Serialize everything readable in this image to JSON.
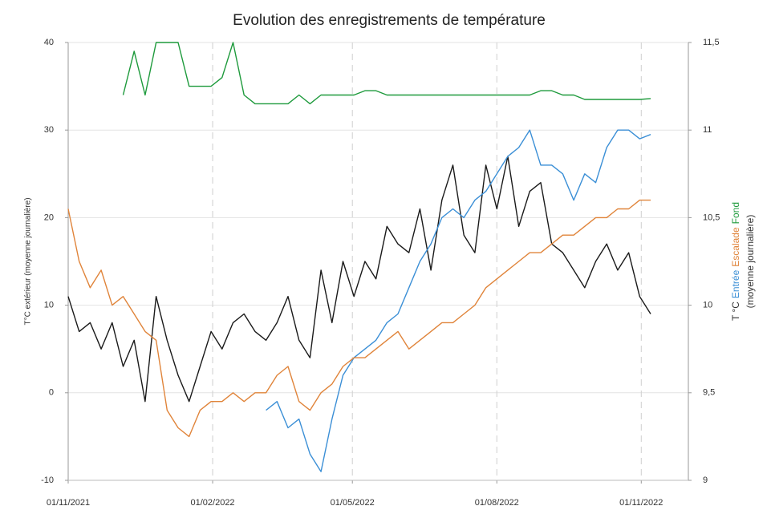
{
  "chart_data": {
    "type": "line",
    "title": "Evolution des enregistrements de température",
    "y_label": "T°C extérieur (moyenne journalière)",
    "y2_label_prefix": "T °C",
    "y2_label_suffix": "(moyenne journalière)",
    "x": [
      "2021-11-01",
      "2021-11-08",
      "2021-11-15",
      "2021-11-22",
      "2021-11-29",
      "2021-12-06",
      "2021-12-13",
      "2021-12-20",
      "2021-12-27",
      "2022-01-03",
      "2022-01-10",
      "2022-01-17",
      "2022-01-24",
      "2022-01-31",
      "2022-02-07",
      "2022-02-14",
      "2022-02-21",
      "2022-02-28",
      "2022-03-07",
      "2022-03-14",
      "2022-03-21",
      "2022-03-28",
      "2022-04-04",
      "2022-04-11",
      "2022-04-18",
      "2022-04-25",
      "2022-05-02",
      "2022-05-09",
      "2022-05-16",
      "2022-05-23",
      "2022-05-30",
      "2022-06-06",
      "2022-06-13",
      "2022-06-20",
      "2022-06-27",
      "2022-07-04",
      "2022-07-11",
      "2022-07-18",
      "2022-07-25",
      "2022-08-01",
      "2022-08-08",
      "2022-08-15",
      "2022-08-22",
      "2022-08-29",
      "2022-09-05",
      "2022-09-12",
      "2022-09-19",
      "2022-09-26",
      "2022-10-03",
      "2022-10-10",
      "2022-10-17",
      "2022-10-24",
      "2022-10-31",
      "2022-11-07"
    ],
    "series": [
      {
        "color": "#1a1a1a",
        "axis": "y",
        "values": [
          11,
          7,
          8,
          5,
          8,
          3,
          6,
          -1,
          11,
          6,
          2,
          -1,
          3,
          7,
          5,
          8,
          9,
          7,
          6,
          8,
          11,
          6,
          4,
          14,
          8,
          15,
          11,
          15,
          13,
          19,
          17,
          16,
          21,
          14,
          22,
          26,
          18,
          16,
          26,
          21,
          27,
          19,
          23,
          24,
          17,
          16,
          14,
          12,
          15,
          17,
          14,
          16,
          11,
          9
        ]
      },
      {
        "name": "Entrée",
        "color": "#3b8fd6",
        "axis": "y2",
        "values": [
          null,
          null,
          null,
          null,
          null,
          null,
          null,
          null,
          null,
          null,
          null,
          null,
          null,
          null,
          null,
          null,
          null,
          null,
          9.4,
          9.45,
          9.3,
          9.35,
          9.15,
          9.05,
          9.35,
          9.6,
          9.7,
          9.75,
          9.8,
          9.9,
          9.95,
          10.1,
          10.25,
          10.35,
          10.5,
          10.55,
          10.5,
          10.6,
          10.65,
          10.75,
          10.85,
          10.9,
          11,
          10.8,
          10.8,
          10.75,
          10.6,
          10.75,
          10.7,
          10.9,
          11,
          11,
          10.95,
          10.975
        ]
      },
      {
        "name": "Escalade",
        "color": "#e0843a",
        "axis": "y2",
        "values": [
          10.55,
          10.25,
          10.1,
          10.2,
          10,
          10.05,
          9.95,
          9.85,
          9.8,
          9.4,
          9.3,
          9.25,
          9.4,
          9.45,
          9.45,
          9.5,
          9.45,
          9.5,
          9.5,
          9.6,
          9.65,
          9.45,
          9.4,
          9.5,
          9.55,
          9.65,
          9.7,
          9.7,
          9.75,
          9.8,
          9.85,
          9.75,
          9.8,
          9.85,
          9.9,
          9.9,
          9.95,
          10,
          10.1,
          10.15,
          10.2,
          10.25,
          10.3,
          10.3,
          10.35,
          10.4,
          10.4,
          10.45,
          10.5,
          10.5,
          10.55,
          10.55,
          10.6,
          10.6
        ]
      },
      {
        "name": "Fond",
        "color": "#1e9a3c",
        "axis": "y2",
        "values": [
          null,
          null,
          null,
          null,
          null,
          11.2,
          11.45,
          11.2,
          11.5,
          11.5,
          11.5,
          11.25,
          11.25,
          11.25,
          11.3,
          11.5,
          11.2,
          11.15,
          11.15,
          11.15,
          11.15,
          11.2,
          11.15,
          11.2,
          11.2,
          11.2,
          11.2,
          11.225,
          11.225,
          11.2,
          11.2,
          11.2,
          11.2,
          11.2,
          11.2,
          11.2,
          11.2,
          11.2,
          11.2,
          11.2,
          11.2,
          11.2,
          11.2,
          11.225,
          11.225,
          11.2,
          11.2,
          11.175,
          11.175,
          11.175,
          11.175,
          11.175,
          11.175,
          11.18
        ]
      }
    ],
    "xlim": [
      "2021-11-01",
      "2022-12-01"
    ],
    "xticks": [
      {
        "value": "2021-11-01",
        "label": "01/11/2021"
      },
      {
        "value": "2022-02-01",
        "label": "01/02/2022"
      },
      {
        "value": "2022-05-01",
        "label": "01/05/2022"
      },
      {
        "value": "2022-08-01",
        "label": "01/08/2022"
      },
      {
        "value": "2022-11-01",
        "label": "01/11/2022"
      }
    ],
    "ylim": [
      -10,
      40
    ],
    "yticks": [
      -10,
      0,
      10,
      20,
      30,
      40
    ],
    "y2lim": [
      9,
      11.5
    ],
    "y2ticks": [
      9,
      {
        "value": 9.5,
        "label": "9,5"
      },
      10,
      {
        "value": 10.5,
        "label": "10,5"
      },
      11,
      {
        "value": 11.5,
        "label": "11,5"
      }
    ],
    "grid": true
  }
}
